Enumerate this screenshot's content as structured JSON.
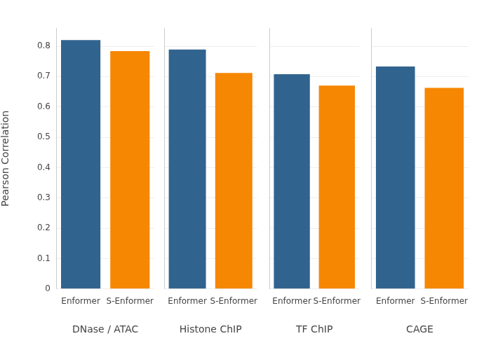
{
  "chart_data": [
    {
      "type": "bar",
      "x_label": "DNase / ATAC",
      "y_label": "Pearson Correlation",
      "categories": [
        "Enformer",
        "S-Enformer"
      ],
      "values": [
        0.82,
        0.784
      ],
      "colors": [
        "#31638f",
        "#f68703"
      ],
      "ylim": [
        0,
        0.86
      ],
      "yticks": [
        0,
        0.1,
        0.2,
        0.3,
        0.4,
        0.5,
        0.6,
        0.7,
        0.8
      ],
      "grid": true
    },
    {
      "type": "bar",
      "x_label": "Histone ChIP",
      "categories": [
        "Enformer",
        "S-Enformer"
      ],
      "values": [
        0.789,
        0.712
      ],
      "colors": [
        "#31638f",
        "#f68703"
      ],
      "ylim": [
        0,
        0.86
      ],
      "yticks": [
        0,
        0.1,
        0.2,
        0.3,
        0.4,
        0.5,
        0.6,
        0.7,
        0.8
      ],
      "grid": true,
      "tick_labels": "x"
    },
    {
      "type": "bar",
      "x_label": "TF ChIP",
      "categories": [
        "Enformer",
        "S-Enformer"
      ],
      "values": [
        0.708,
        0.67
      ],
      "colors": [
        "#31638f",
        "#f68703"
      ],
      "ylim": [
        0,
        0.86
      ],
      "yticks": [
        0,
        0.1,
        0.2,
        0.3,
        0.4,
        0.5,
        0.6,
        0.7,
        0.8
      ],
      "grid": true,
      "tick_labels": "x"
    },
    {
      "type": "bar",
      "x_label": "CAGE",
      "categories": [
        "Enformer",
        "S-Enformer"
      ],
      "values": [
        0.733,
        0.663
      ],
      "colors": [
        "#31638f",
        "#f68703"
      ],
      "ylim": [
        0,
        0.86
      ],
      "yticks": [
        0,
        0.1,
        0.2,
        0.3,
        0.4,
        0.5,
        0.6,
        0.7,
        0.8
      ],
      "grid": true,
      "tick_labels": "x"
    }
  ]
}
